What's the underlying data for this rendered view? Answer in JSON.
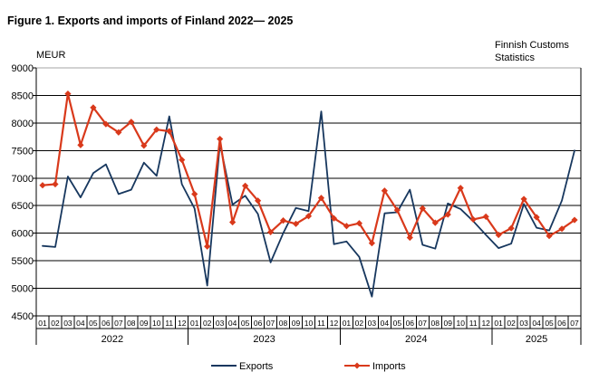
{
  "title": "Figure 1. Exports and imports of Finland 2022— 2025",
  "source_line1": "Finnish Customs",
  "source_line2": "Statistics",
  "y_axis_label": "MEUR",
  "legend": {
    "exports_label": "Exports",
    "imports_label": "Imports"
  },
  "colors": {
    "exports": "#17375E",
    "imports": "#D9391B",
    "grid": "#000000",
    "top_grid": "#A6A6A6",
    "background": "#FFFFFF"
  },
  "chart_data": {
    "type": "line",
    "title": "Figure 1. Exports and imports of Finland 2022— 2025",
    "xlabel": "",
    "ylabel": "MEUR",
    "ylim": [
      4500,
      9000
    ],
    "y_ticks": [
      9000,
      8500,
      8000,
      7500,
      7000,
      6500,
      6000,
      5500,
      5000,
      4500
    ],
    "grid": true,
    "legend_position": "bottom",
    "years": [
      {
        "label": "2022",
        "months": [
          "01",
          "02",
          "03",
          "04",
          "05",
          "06",
          "07",
          "08",
          "09",
          "10",
          "11",
          "12"
        ]
      },
      {
        "label": "2023",
        "months": [
          "01",
          "02",
          "03",
          "04",
          "05",
          "06",
          "07",
          "08",
          "09",
          "10",
          "11",
          "12"
        ]
      },
      {
        "label": "2024",
        "months": [
          "01",
          "02",
          "03",
          "04",
          "05",
          "06",
          "07",
          "08",
          "09",
          "10",
          "11",
          "12"
        ]
      },
      {
        "label": "2025",
        "months": [
          "01",
          "02",
          "03",
          "04",
          "05",
          "06",
          "07"
        ]
      }
    ],
    "series": [
      {
        "name": "Exports",
        "color": "#17375E",
        "marker": "none",
        "values": [
          5770,
          5750,
          7030,
          6650,
          7090,
          7250,
          6710,
          6790,
          7280,
          7040,
          8120,
          6890,
          6450,
          5050,
          7630,
          6520,
          6680,
          6350,
          5470,
          6000,
          6460,
          6400,
          8210,
          5800,
          5850,
          5570,
          4850,
          6360,
          6380,
          6790,
          5790,
          5720,
          6540,
          6440,
          6220,
          5970,
          5730,
          5810,
          6530,
          6100,
          6050,
          6590,
          7500
        ]
      },
      {
        "name": "Imports",
        "color": "#D9391B",
        "marker": "diamond",
        "values": [
          6870,
          6890,
          8530,
          7600,
          8280,
          7980,
          7830,
          8020,
          7590,
          7880,
          7850,
          7330,
          6710,
          5760,
          7710,
          6200,
          6860,
          6590,
          6020,
          6230,
          6170,
          6310,
          6640,
          6270,
          6130,
          6180,
          5820,
          6770,
          6420,
          5920,
          6450,
          6190,
          6340,
          6820,
          6250,
          6300,
          5970,
          6090,
          6620,
          6290,
          5950,
          6080,
          6240
        ]
      }
    ]
  }
}
